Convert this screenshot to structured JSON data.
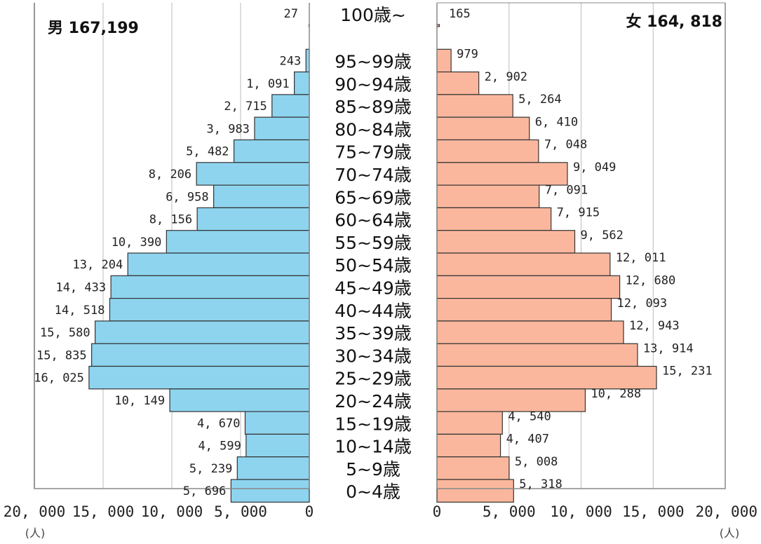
{
  "chart_data": {
    "type": "bar",
    "subtype": "population-pyramid",
    "categories": [
      "100歳~",
      "95~99歳",
      "90~94歳",
      "85~89歳",
      "80~84歳",
      "75~79歳",
      "70~74歳",
      "65~69歳",
      "60~64歳",
      "55~59歳",
      "50~54歳",
      "45~49歳",
      "40~44歳",
      "35~39歳",
      "30~34歳",
      "25~29歳",
      "20~24歳",
      "15~19歳",
      "10~14歳",
      "5~9歳",
      "0~4歳"
    ],
    "series": [
      {
        "name": "男",
        "total": "167,199",
        "color": "#8ed4ef",
        "values": [
          27,
          243,
          1091,
          2715,
          3983,
          5482,
          8206,
          6958,
          8156,
          10390,
          13204,
          14433,
          14518,
          15580,
          15835,
          16025,
          10149,
          4670,
          4599,
          5239,
          5696
        ],
        "labels": [
          "27",
          "243",
          "1, 091",
          "2, 715",
          "3, 983",
          "5, 482",
          "8, 206",
          "6, 958",
          "8, 156",
          "10, 390",
          "13, 204",
          "14, 433",
          "14, 518",
          "15, 580",
          "15, 835",
          "16, 025",
          "10, 149",
          "4, 670",
          "4, 599",
          "5, 239",
          "5, 696"
        ]
      },
      {
        "name": "女",
        "total": "164, 818",
        "color": "#fbb79d",
        "values": [
          165,
          979,
          2902,
          5264,
          6410,
          7048,
          9049,
          7091,
          7915,
          9562,
          12011,
          12680,
          12093,
          12943,
          13914,
          15231,
          10288,
          4540,
          4407,
          5008,
          5318
        ],
        "labels": [
          "165",
          "979",
          "2, 902",
          "5, 264",
          "6, 410",
          "7, 048",
          "9, 049",
          "7, 091",
          "7, 915",
          "9, 562",
          "12, 011",
          "12, 680",
          "12, 093",
          "12, 943",
          "13, 914",
          "15, 231",
          "10, 288",
          "4, 540",
          "4, 407",
          "5, 008",
          "5, 318"
        ]
      }
    ],
    "xlim": [
      0,
      20000
    ],
    "left_ticks": [
      "20, 000",
      "15, 000",
      "10, 000",
      "5, 000",
      "0"
    ],
    "right_ticks": [
      "0",
      "5, 000",
      "10, 000",
      "15, 000",
      "20, 000"
    ],
    "unit": "(人)",
    "grid": true,
    "colors": {
      "male": "#8ed4ef",
      "female": "#fbb79d",
      "edge": "#333333",
      "grid": "#bbbbbb",
      "axis": "#888888"
    }
  }
}
